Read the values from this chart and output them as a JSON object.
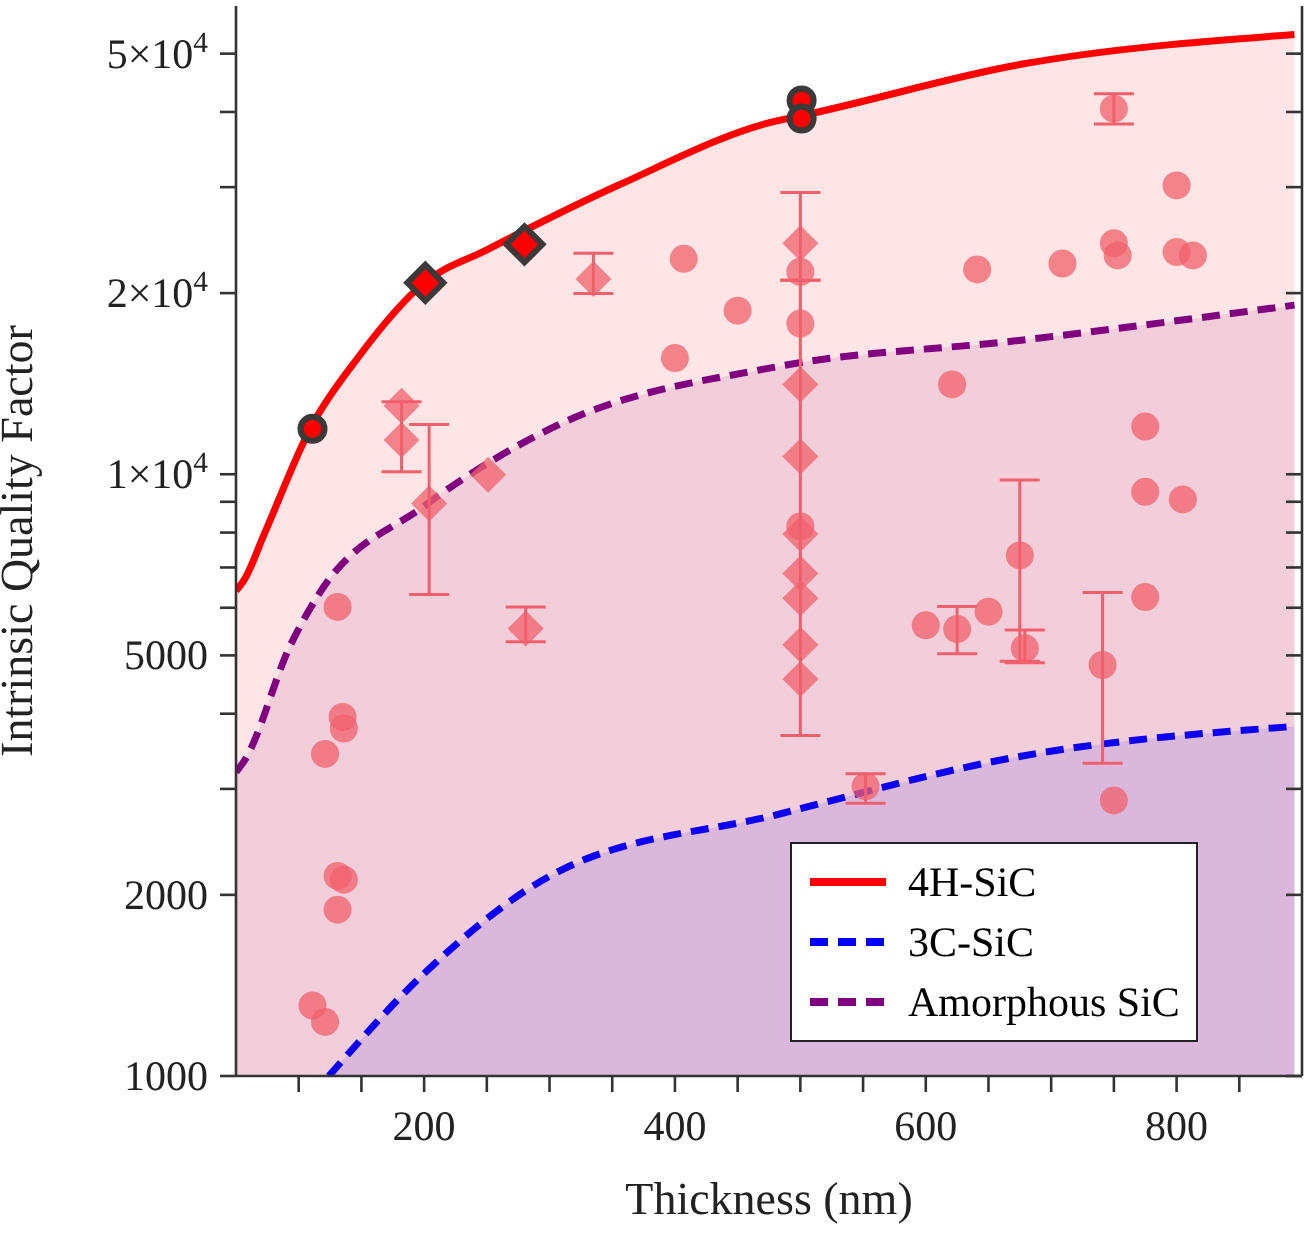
{
  "chart_data": {
    "type": "scatter",
    "xlabel": "Thickness (nm)",
    "ylabel": "Intrinsic Quality Factor",
    "log": "y",
    "xlim": [
      50,
      900
    ],
    "ylim": [
      1000,
      60000
    ],
    "xticks": [
      {
        "value": 100,
        "label": null
      },
      {
        "value": 150,
        "label": null
      },
      200,
      {
        "value": 250,
        "label": null
      },
      {
        "value": 300,
        "label": null
      },
      {
        "value": 350,
        "label": null
      },
      400,
      {
        "value": 450,
        "label": null
      },
      {
        "value": 500,
        "label": null
      },
      {
        "value": 550,
        "label": null
      },
      600,
      {
        "value": 650,
        "label": null
      },
      {
        "value": 700,
        "label": null
      },
      {
        "value": 750,
        "label": null
      },
      800,
      {
        "value": 850,
        "label": null
      }
    ],
    "yticks": [
      1000,
      2000,
      {
        "value": 3000,
        "label": null
      },
      {
        "value": 4000,
        "label": null
      },
      5000,
      {
        "value": 6000,
        "label": null
      },
      {
        "value": 7000,
        "label": null
      },
      {
        "value": 8000,
        "label": null
      },
      {
        "value": 9000,
        "label": null
      },
      {
        "value": 10000,
        "label": "1×10$^{4}$"
      },
      {
        "value": 20000,
        "label": "2×10$^{4}$"
      },
      {
        "value": 30000,
        "label": null
      },
      {
        "value": 40000,
        "label": null
      },
      {
        "value": 50000,
        "label": "5×10$^{4}$"
      }
    ],
    "legend": "bottom right",
    "grid": false,
    "series": [
      {
        "name": "4H-SiC",
        "type": "area",
        "color": "#ff0000",
        "line_style": "solid",
        "x": [
          50,
          57,
          72.5,
          110,
          146,
          200,
          250,
          356,
          482,
          500,
          676,
          894
        ],
        "values": [
          6400,
          6700,
          7950,
          12000,
          15500,
          20800,
          23600,
          30300,
          38700,
          39400,
          48000,
          53800
        ]
      },
      {
        "name": "3C-SiC",
        "type": "area",
        "color": "#0000ff",
        "line_style": "dashed",
        "x": [
          124,
          200,
          304,
          482,
          676,
          894
        ],
        "values": [
          1000,
          1480,
          2170,
          2720,
          3400,
          3810
        ]
      },
      {
        "name": "Amorphous SiC",
        "type": "area",
        "color": "#800080",
        "line_style": "dashed",
        "x": [
          50,
          57,
          93,
          115,
          200,
          304,
          482,
          676,
          894
        ],
        "values": [
          3200,
          3350,
          5180,
          6270,
          8850,
          12000,
          15100,
          16700,
          19100
        ]
      },
      {
        "marker": "circle",
        "color": "#f0606c",
        "x": [
          407,
          450,
          400,
          131,
          135,
          136,
          121,
          131,
          136,
          131,
          111,
          121,
          500,
          500,
          500,
          641,
          709,
          750,
          753,
          750,
          800,
          800,
          813,
          621,
          775,
          775,
          805,
          675,
          679,
          600,
          625,
          650,
          775,
          741,
          552,
          750
        ],
        "values": [
          22800,
          18700,
          15600,
          6020,
          3950,
          3780,
          3430,
          2150,
          2120,
          1890,
          1310,
          1230,
          21700,
          17800,
          8190,
          21900,
          22400,
          24200,
          23100,
          40500,
          30200,
          23400,
          23100,
          14100,
          12000,
          9350,
          9080,
          7330,
          5140,
          5610,
          5530,
          5910,
          6250,
          4820,
          3030,
          2870
        ],
        "errors": [
          null,
          null,
          null,
          null,
          null,
          null,
          null,
          null,
          null,
          null,
          null,
          null,
          null,
          null,
          null,
          null,
          null,
          null,
          null,
          [
            38200,
            42900
          ],
          null,
          null,
          null,
          null,
          null,
          null,
          null,
          [
            4890,
            9780
          ],
          [
            4860,
            5510
          ],
          null,
          [
            5030,
            6030
          ],
          null,
          null,
          [
            3310,
            6360
          ],
          [
            2840,
            3180
          ],
          null
        ]
      },
      {
        "marker": "diamond",
        "color": "#f0606c",
        "x": [
          182,
          182,
          204,
          251,
          335,
          281,
          500,
          500,
          500,
          500,
          500,
          500,
          500,
          500
        ],
        "values": [
          13000,
          11400,
          8940,
          9980,
          21100,
          5540,
          24200,
          14100,
          10700,
          7960,
          6840,
          6220,
          5210,
          4570
        ],
        "errors": [
          null,
          [
            10100,
            13200
          ],
          [
            6310,
            12100
          ],
          null,
          [
            19970,
            23300
          ],
          [
            5270,
            6020
          ],
          [
            21000,
            29400
          ],
          [
            3680,
            21000
          ],
          null,
          null,
          null,
          null,
          null,
          null
        ]
      },
      {
        "marker": "circle",
        "color": "#ff0000",
        "x": [
          111,
          501,
          501
        ],
        "values": [
          11900,
          41800,
          39000
        ]
      },
      {
        "marker": "diamond",
        "color": "#ff0000",
        "x": [
          201,
          280
        ],
        "values": [
          20800,
          24100
        ]
      }
    ]
  }
}
